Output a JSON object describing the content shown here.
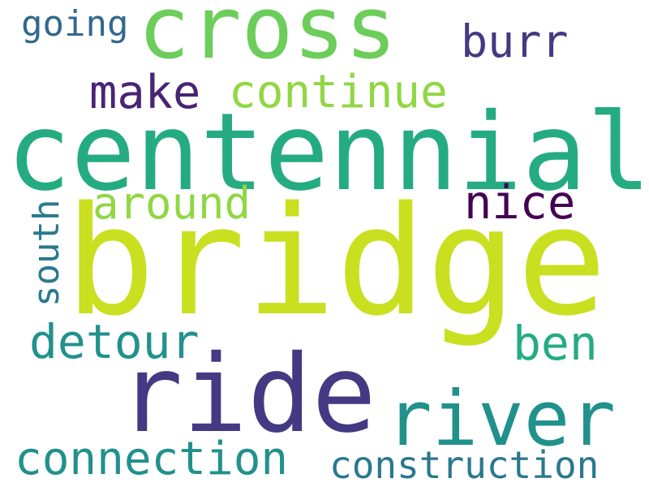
{
  "words": {
    "cross": "cross",
    "centennial": "centennial",
    "bridge": "bridge",
    "ride": "ride",
    "river": "river",
    "connection": "connection",
    "construction": "construction",
    "detour": "detour",
    "ben": "ben",
    "south": "south",
    "around": "around",
    "nice": "nice",
    "make": "make",
    "continue": "continue",
    "burr": "burr",
    "going": "going"
  },
  "colors": {
    "lime": "#c8e020",
    "green": "#6ccd5a",
    "light_green": "#90d743",
    "teal": "#25ab82",
    "cyan": "#21918c",
    "blue_teal": "#2a788e",
    "steel": "#31688e",
    "indigo": "#443983",
    "purple": "#440154",
    "dark_purple": "#482475"
  }
}
